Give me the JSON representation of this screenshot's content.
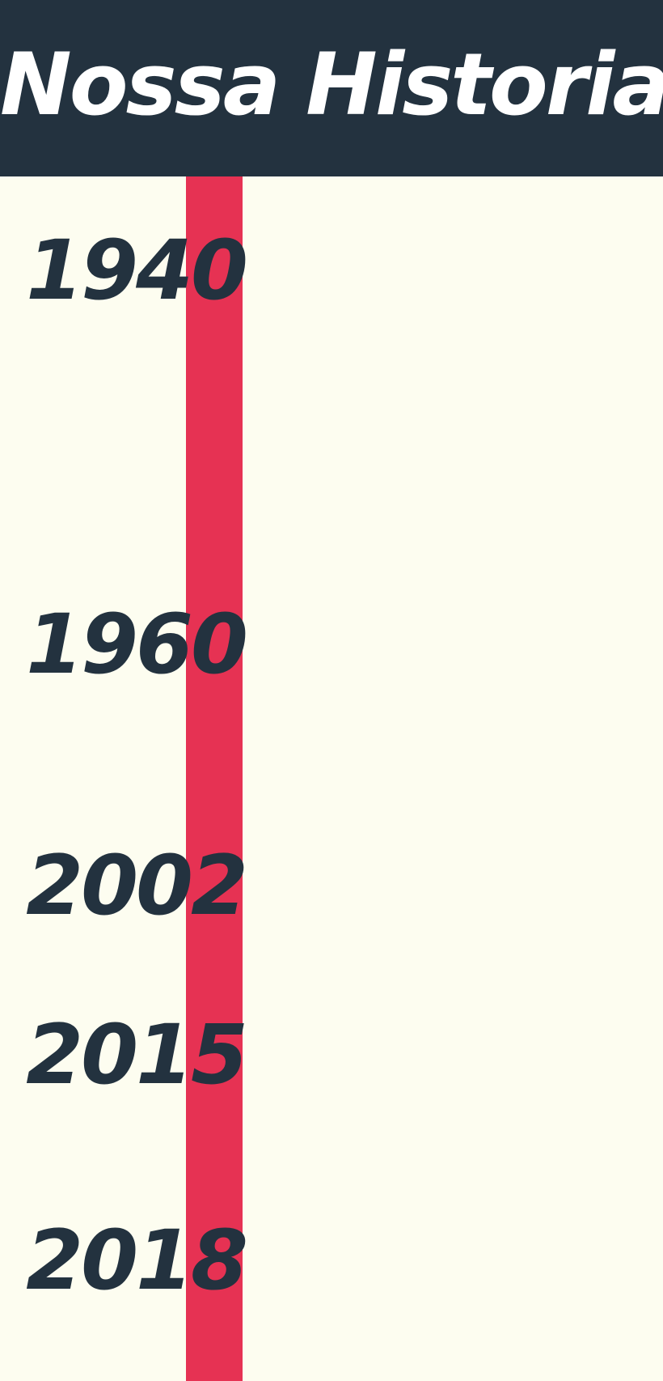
{
  "header": {
    "title": "Nossa Historia",
    "background_color": "#23323f"
  },
  "timeline": {
    "accent_color": "#e63253",
    "years": [
      "1940",
      "1960",
      "2002",
      "2015",
      "2018"
    ]
  }
}
